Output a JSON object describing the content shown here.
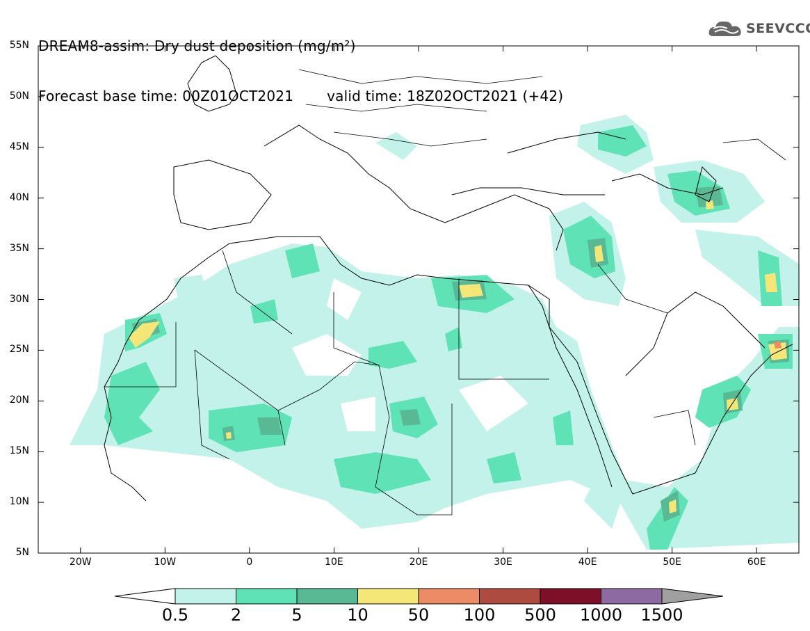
{
  "title": {
    "line1": "DREAM8-assim: Dry dust deposition (mg/m²)",
    "base": "Forecast base time: 00Z01OCT2021",
    "valid": "valid time: 18Z02OCT2021 (+42)"
  },
  "logo": {
    "text": "SEEVCCC",
    "icon": "cloud-logo-icon"
  },
  "map": {
    "lon_range": [
      -25,
      65
    ],
    "lat_range": [
      5,
      55
    ],
    "lat_ticks": [
      "55N",
      "50N",
      "45N",
      "40N",
      "35N",
      "30N",
      "25N",
      "20N",
      "15N",
      "10N",
      "5N"
    ],
    "lon_ticks": [
      "20W",
      "10W",
      "0",
      "10E",
      "20E",
      "30E",
      "40E",
      "50E",
      "60E"
    ]
  },
  "colorbar": {
    "labels": [
      "0.5",
      "2",
      "5",
      "10",
      "50",
      "100",
      "500",
      "1000",
      "1500"
    ],
    "colors": [
      "#c2f2ea",
      "#5fe2b6",
      "#59b994",
      "#f4e777",
      "#ec8b65",
      "#ae4b40",
      "#7e0f28",
      "#8e6aa3"
    ],
    "over_color": "#a0a0a0",
    "under_color": "#ffffff"
  }
}
